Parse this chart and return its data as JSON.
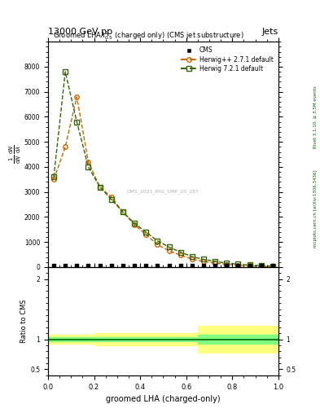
{
  "title_top": "13000 GeV pp",
  "title_right": "Jets",
  "rivet_label": "Rivet 3.1.10, ≥ 3.5M events",
  "arxiv_label": "mcplots.cern.ch [arXiv:1306.3436]",
  "watermark": "CMS_2021_PAS_SMP_20_187",
  "xlabel": "groomed LHA (charged-only)",
  "ylabel_ratio": "Ratio to CMS",
  "herwig_pp_x": [
    0.025,
    0.075,
    0.125,
    0.175,
    0.225,
    0.275,
    0.325,
    0.375,
    0.425,
    0.475,
    0.525,
    0.575,
    0.625,
    0.675,
    0.725,
    0.775,
    0.825,
    0.875,
    0.925,
    0.975
  ],
  "herwig_pp_y": [
    3500,
    4800,
    6800,
    4200,
    3200,
    2800,
    2200,
    1700,
    1300,
    900,
    650,
    480,
    320,
    230,
    160,
    110,
    75,
    50,
    30,
    15
  ],
  "herwig72_x": [
    0.025,
    0.075,
    0.125,
    0.175,
    0.225,
    0.275,
    0.325,
    0.375,
    0.425,
    0.475,
    0.525,
    0.575,
    0.625,
    0.675,
    0.725,
    0.775,
    0.825,
    0.875,
    0.925,
    0.975
  ],
  "herwig72_y": [
    3600,
    7800,
    5800,
    4000,
    3200,
    2700,
    2200,
    1750,
    1400,
    1050,
    800,
    600,
    420,
    310,
    230,
    160,
    115,
    80,
    55,
    35
  ],
  "herwig_pp_color": "#cc6600",
  "herwig72_color": "#336600",
  "cms_color": "#000000",
  "ratio_band_yellow": "#ffff80",
  "ratio_band_green": "#80ff80",
  "ratio_line_color": "#006600",
  "background_color": "#ffffff",
  "ratio_x": [
    0.0,
    0.1,
    0.2,
    0.3,
    0.4,
    0.5,
    0.6,
    0.65,
    0.7,
    0.75,
    0.8,
    0.9,
    1.0
  ],
  "ratio_yellow_low": [
    0.92,
    0.92,
    0.9,
    0.9,
    0.9,
    0.9,
    0.9,
    0.78,
    0.78,
    0.78,
    0.78,
    0.78,
    0.88
  ],
  "ratio_yellow_high": [
    1.08,
    1.08,
    1.1,
    1.1,
    1.1,
    1.1,
    1.1,
    1.22,
    1.22,
    1.22,
    1.22,
    1.22,
    1.12
  ],
  "ratio_green_low": [
    0.97,
    0.97,
    0.96,
    0.96,
    0.96,
    0.96,
    0.96,
    0.93,
    0.93,
    0.93,
    0.93,
    0.93,
    0.97
  ],
  "ratio_green_high": [
    1.03,
    1.03,
    1.04,
    1.04,
    1.04,
    1.04,
    1.04,
    1.07,
    1.07,
    1.07,
    1.07,
    1.07,
    1.03
  ],
  "yticks_main": [
    0,
    1000,
    2000,
    3000,
    4000,
    5000,
    6000,
    7000,
    8000
  ],
  "ytick_labels_main": [
    "0",
    "1000",
    "2000",
    "3000",
    "4000",
    "5000",
    "6000",
    "7000",
    "8000"
  ],
  "yticks_ratio": [
    0.5,
    1.0,
    2.0
  ],
  "ytick_labels_ratio": [
    "0.5",
    "1",
    "2"
  ]
}
